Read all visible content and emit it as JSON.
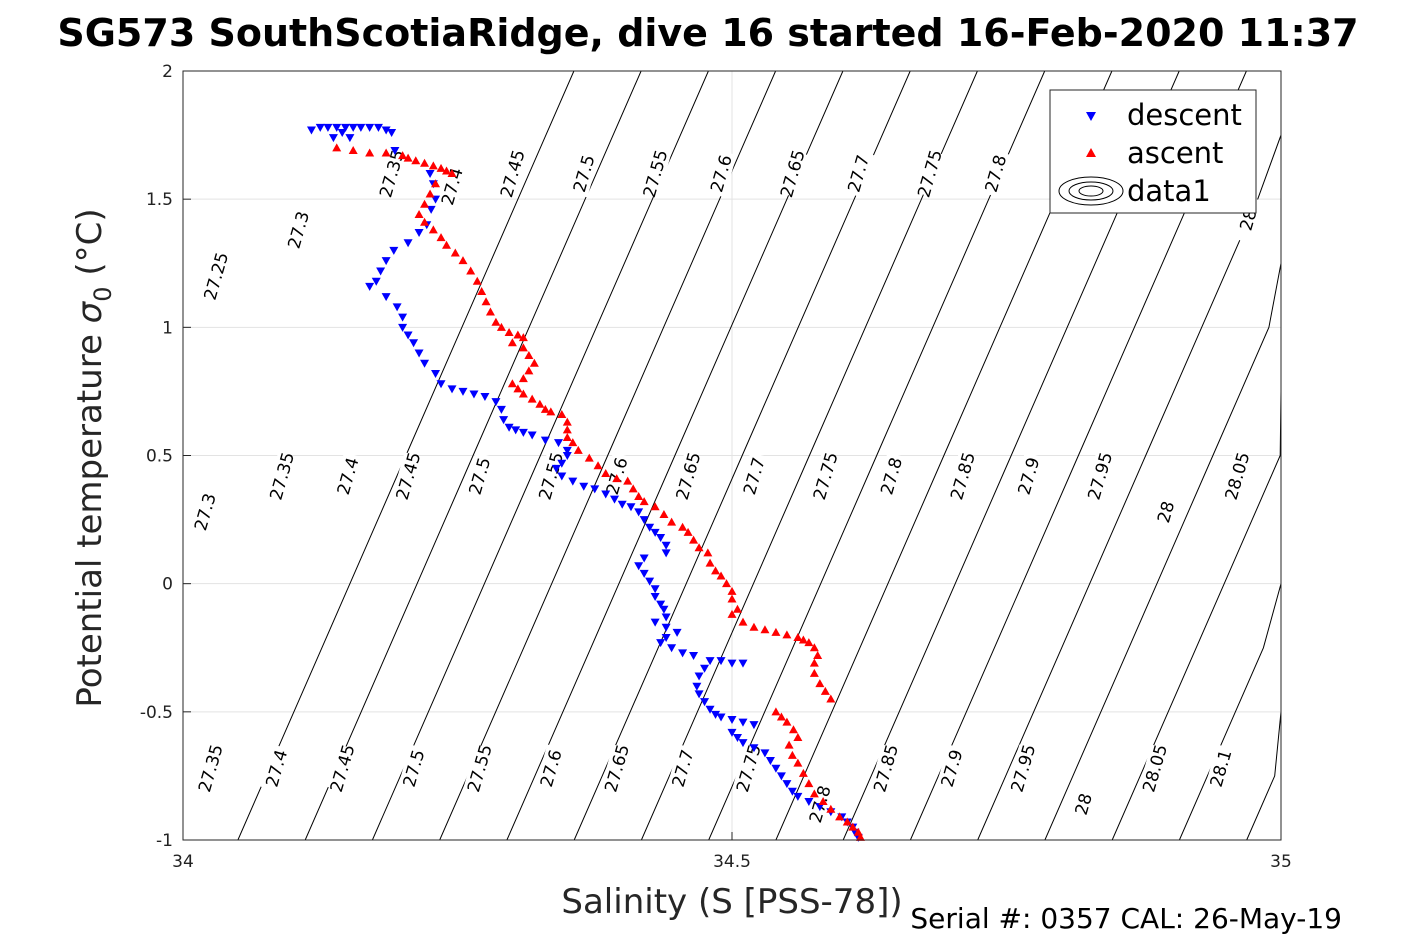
{
  "chart_data": {
    "type": "scatter",
    "title": "SG573 SouthScotiaRidge, dive 16 started 16-Feb-2020 11:37",
    "xlabel": "Salinity (S [PSS-78])",
    "ylabel": "Potential temperature σ₀ (°C)",
    "ylabel_main": "Potential temperature ",
    "ylabel_sym": "σ",
    "ylabel_sub": "0",
    "ylabel_unit": " (°C)",
    "xlim": [
      34,
      35
    ],
    "ylim": [
      -1,
      2
    ],
    "xticks": [
      "34",
      "34.5",
      "35"
    ],
    "yticks": [
      "-1",
      "-0.5",
      "0",
      "0.5",
      "1",
      "1.5",
      "2"
    ],
    "grid": true,
    "legend_placement": "top-right",
    "legend": [
      "descent",
      "ascent",
      "data1"
    ],
    "footer": "Serial #: 0357  CAL: 26-May-19",
    "density_contours": {
      "levels": [
        27.25,
        27.3,
        27.35,
        27.4,
        27.45,
        27.5,
        27.55,
        27.6,
        27.65,
        27.7,
        27.75,
        27.8,
        27.85,
        27.9,
        27.95,
        28,
        28.05,
        28.1
      ],
      "labels_top": [
        {
          "text": "27.25",
          "s": 34.03,
          "t": 1.2
        },
        {
          "text": "27.3",
          "s": 34.105,
          "t": 1.38
        },
        {
          "text": "27.35",
          "s": 34.19,
          "t": 1.6
        },
        {
          "text": "27.4",
          "s": 34.245,
          "t": 1.55
        },
        {
          "text": "27.45",
          "s": 34.3,
          "t": 1.6
        },
        {
          "text": "27.5",
          "s": 34.365,
          "t": 1.6
        },
        {
          "text": "27.55",
          "s": 34.43,
          "t": 1.6
        },
        {
          "text": "27.6",
          "s": 34.49,
          "t": 1.6
        },
        {
          "text": "27.65",
          "s": 34.555,
          "t": 1.6
        },
        {
          "text": "27.7",
          "s": 34.615,
          "t": 1.6
        },
        {
          "text": "27.75",
          "s": 34.68,
          "t": 1.6
        },
        {
          "text": "27.8",
          "s": 34.74,
          "t": 1.6
        },
        {
          "text": "28",
          "s": 34.97,
          "t": 1.42
        }
      ],
      "labels_mid": [
        {
          "text": "27.3",
          "s": 34.02,
          "t": 0.28
        },
        {
          "text": "27.35",
          "s": 34.09,
          "t": 0.42
        },
        {
          "text": "27.4",
          "s": 34.15,
          "t": 0.42
        },
        {
          "text": "27.45",
          "s": 34.205,
          "t": 0.42
        },
        {
          "text": "27.5",
          "s": 34.27,
          "t": 0.42
        },
        {
          "text": "27.55",
          "s": 34.335,
          "t": 0.42
        },
        {
          "text": "27.6",
          "s": 34.395,
          "t": 0.42
        },
        {
          "text": "27.65",
          "s": 34.46,
          "t": 0.42
        },
        {
          "text": "27.7",
          "s": 34.52,
          "t": 0.42
        },
        {
          "text": "27.75",
          "s": 34.585,
          "t": 0.42
        },
        {
          "text": "27.8",
          "s": 34.645,
          "t": 0.42
        },
        {
          "text": "27.85",
          "s": 34.71,
          "t": 0.42
        },
        {
          "text": "27.9",
          "s": 34.77,
          "t": 0.42
        },
        {
          "text": "27.95",
          "s": 34.835,
          "t": 0.42
        },
        {
          "text": "28",
          "s": 34.895,
          "t": 0.28
        },
        {
          "text": "28.05",
          "s": 34.96,
          "t": 0.42
        }
      ],
      "labels_bot": [
        {
          "text": "27.35",
          "s": 34.025,
          "t": -0.72
        },
        {
          "text": "27.4",
          "s": 34.085,
          "t": -0.72
        },
        {
          "text": "27.45",
          "s": 34.145,
          "t": -0.72
        },
        {
          "text": "27.5",
          "s": 34.21,
          "t": -0.72
        },
        {
          "text": "27.55",
          "s": 34.27,
          "t": -0.72
        },
        {
          "text": "27.6",
          "s": 34.335,
          "t": -0.72
        },
        {
          "text": "27.65",
          "s": 34.395,
          "t": -0.72
        },
        {
          "text": "27.7",
          "s": 34.455,
          "t": -0.72
        },
        {
          "text": "27.75",
          "s": 34.515,
          "t": -0.72
        },
        {
          "text": "27.8",
          "s": 34.58,
          "t": -0.86
        },
        {
          "text": "27.85",
          "s": 34.64,
          "t": -0.72
        },
        {
          "text": "27.9",
          "s": 34.7,
          "t": -0.72
        },
        {
          "text": "27.95",
          "s": 34.765,
          "t": -0.72
        },
        {
          "text": "28",
          "s": 34.82,
          "t": -0.86
        },
        {
          "text": "28.05",
          "s": 34.885,
          "t": -0.72
        },
        {
          "text": "28.1",
          "s": 34.945,
          "t": -0.72
        }
      ]
    },
    "series": [
      {
        "name": "descent",
        "color": "#0000ff",
        "marker": "triangle-down",
        "points": [
          [
            34.117,
            1.77
          ],
          [
            34.125,
            1.78
          ],
          [
            34.132,
            1.78
          ],
          [
            34.14,
            1.78
          ],
          [
            34.148,
            1.78
          ],
          [
            34.155,
            1.78
          ],
          [
            34.162,
            1.78
          ],
          [
            34.17,
            1.78
          ],
          [
            34.178,
            1.78
          ],
          [
            34.185,
            1.77
          ],
          [
            34.19,
            1.76
          ],
          [
            34.145,
            1.76
          ],
          [
            34.152,
            1.74
          ],
          [
            34.137,
            1.74
          ],
          [
            34.193,
            1.69
          ],
          [
            34.225,
            1.6
          ],
          [
            34.228,
            1.56
          ],
          [
            34.23,
            1.5
          ],
          [
            34.226,
            1.46
          ],
          [
            34.222,
            1.4
          ],
          [
            34.215,
            1.37
          ],
          [
            34.205,
            1.33
          ],
          [
            34.192,
            1.3
          ],
          [
            34.185,
            1.26
          ],
          [
            34.18,
            1.22
          ],
          [
            34.176,
            1.18
          ],
          [
            34.17,
            1.16
          ],
          [
            34.185,
            1.12
          ],
          [
            34.195,
            1.08
          ],
          [
            34.2,
            1.04
          ],
          [
            34.2,
            1.0
          ],
          [
            34.205,
            0.97
          ],
          [
            34.21,
            0.94
          ],
          [
            34.215,
            0.9
          ],
          [
            34.22,
            0.86
          ],
          [
            34.23,
            0.82
          ],
          [
            34.235,
            0.78
          ],
          [
            34.245,
            0.76
          ],
          [
            34.255,
            0.75
          ],
          [
            34.265,
            0.74
          ],
          [
            34.275,
            0.73
          ],
          [
            34.285,
            0.71
          ],
          [
            34.29,
            0.68
          ],
          [
            34.292,
            0.64
          ],
          [
            34.297,
            0.61
          ],
          [
            34.303,
            0.6
          ],
          [
            34.31,
            0.59
          ],
          [
            34.318,
            0.58
          ],
          [
            34.33,
            0.56
          ],
          [
            34.342,
            0.55
          ],
          [
            34.35,
            0.52
          ],
          [
            34.35,
            0.5
          ],
          [
            34.345,
            0.47
          ],
          [
            34.34,
            0.45
          ],
          [
            34.345,
            0.42
          ],
          [
            34.355,
            0.4
          ],
          [
            34.365,
            0.38
          ],
          [
            34.375,
            0.37
          ],
          [
            34.385,
            0.35
          ],
          [
            34.393,
            0.33
          ],
          [
            34.4,
            0.31
          ],
          [
            34.408,
            0.3
          ],
          [
            34.415,
            0.28
          ],
          [
            34.42,
            0.25
          ],
          [
            34.425,
            0.22
          ],
          [
            34.43,
            0.2
          ],
          [
            34.435,
            0.18
          ],
          [
            34.44,
            0.15
          ],
          [
            34.44,
            0.12
          ],
          [
            34.42,
            0.1
          ],
          [
            34.415,
            0.07
          ],
          [
            34.42,
            0.04
          ],
          [
            34.425,
            0.01
          ],
          [
            34.43,
            -0.02
          ],
          [
            34.43,
            -0.05
          ],
          [
            34.435,
            -0.08
          ],
          [
            34.438,
            -0.1
          ],
          [
            34.44,
            -0.13
          ],
          [
            34.43,
            -0.15
          ],
          [
            34.44,
            -0.17
          ],
          [
            34.45,
            -0.19
          ],
          [
            34.44,
            -0.21
          ],
          [
            34.435,
            -0.23
          ],
          [
            34.445,
            -0.25
          ],
          [
            34.455,
            -0.27
          ],
          [
            34.465,
            -0.28
          ],
          [
            34.48,
            -0.3
          ],
          [
            34.49,
            -0.3
          ],
          [
            34.5,
            -0.31
          ],
          [
            34.51,
            -0.31
          ],
          [
            34.475,
            -0.33
          ],
          [
            34.47,
            -0.36
          ],
          [
            34.468,
            -0.4
          ],
          [
            34.47,
            -0.43
          ],
          [
            34.475,
            -0.46
          ],
          [
            34.48,
            -0.49
          ],
          [
            34.485,
            -0.51
          ],
          [
            34.49,
            -0.52
          ],
          [
            34.5,
            -0.53
          ],
          [
            34.51,
            -0.54
          ],
          [
            34.52,
            -0.55
          ],
          [
            34.5,
            -0.58
          ],
          [
            34.505,
            -0.6
          ],
          [
            34.51,
            -0.62
          ],
          [
            34.52,
            -0.64
          ],
          [
            34.53,
            -0.66
          ],
          [
            34.535,
            -0.69
          ],
          [
            34.54,
            -0.72
          ],
          [
            34.545,
            -0.75
          ],
          [
            34.55,
            -0.78
          ],
          [
            34.555,
            -0.81
          ],
          [
            34.56,
            -0.83
          ],
          [
            34.57,
            -0.85
          ],
          [
            34.58,
            -0.87
          ],
          [
            34.59,
            -0.89
          ],
          [
            34.6,
            -0.91
          ],
          [
            34.605,
            -0.93
          ],
          [
            34.61,
            -0.95
          ],
          [
            34.612,
            -0.97
          ],
          [
            34.615,
            -0.99
          ]
        ]
      },
      {
        "name": "ascent",
        "color": "#ff0000",
        "marker": "triangle-up",
        "points": [
          [
            34.14,
            1.7
          ],
          [
            34.155,
            1.69
          ],
          [
            34.17,
            1.68
          ],
          [
            34.185,
            1.68
          ],
          [
            34.2,
            1.67
          ],
          [
            34.205,
            1.66
          ],
          [
            34.212,
            1.65
          ],
          [
            34.22,
            1.64
          ],
          [
            34.228,
            1.63
          ],
          [
            34.235,
            1.62
          ],
          [
            34.24,
            1.61
          ],
          [
            34.245,
            1.6
          ],
          [
            34.23,
            1.56
          ],
          [
            34.225,
            1.52
          ],
          [
            34.22,
            1.48
          ],
          [
            34.215,
            1.44
          ],
          [
            34.22,
            1.41
          ],
          [
            34.228,
            1.38
          ],
          [
            34.235,
            1.35
          ],
          [
            34.24,
            1.32
          ],
          [
            34.248,
            1.29
          ],
          [
            34.255,
            1.26
          ],
          [
            34.262,
            1.22
          ],
          [
            34.268,
            1.18
          ],
          [
            34.272,
            1.14
          ],
          [
            34.276,
            1.1
          ],
          [
            34.28,
            1.06
          ],
          [
            34.285,
            1.02
          ],
          [
            34.29,
            1.0
          ],
          [
            34.297,
            0.98
          ],
          [
            34.305,
            0.97
          ],
          [
            34.31,
            0.96
          ],
          [
            34.3,
            0.94
          ],
          [
            34.31,
            0.92
          ],
          [
            34.315,
            0.89
          ],
          [
            34.32,
            0.86
          ],
          [
            34.315,
            0.83
          ],
          [
            34.31,
            0.8
          ],
          [
            34.3,
            0.78
          ],
          [
            34.305,
            0.76
          ],
          [
            34.31,
            0.74
          ],
          [
            34.318,
            0.72
          ],
          [
            34.325,
            0.7
          ],
          [
            34.33,
            0.68
          ],
          [
            34.335,
            0.67
          ],
          [
            34.345,
            0.66
          ],
          [
            34.35,
            0.63
          ],
          [
            34.35,
            0.6
          ],
          [
            34.35,
            0.57
          ],
          [
            34.355,
            0.55
          ],
          [
            34.36,
            0.52
          ],
          [
            34.37,
            0.49
          ],
          [
            34.378,
            0.46
          ],
          [
            34.385,
            0.43
          ],
          [
            34.395,
            0.41
          ],
          [
            34.405,
            0.4
          ],
          [
            34.41,
            0.37
          ],
          [
            34.415,
            0.34
          ],
          [
            34.42,
            0.32
          ],
          [
            34.43,
            0.3
          ],
          [
            34.438,
            0.27
          ],
          [
            34.445,
            0.24
          ],
          [
            34.455,
            0.22
          ],
          [
            34.46,
            0.2
          ],
          [
            34.465,
            0.17
          ],
          [
            34.47,
            0.14
          ],
          [
            34.478,
            0.12
          ],
          [
            34.48,
            0.08
          ],
          [
            34.485,
            0.05
          ],
          [
            34.49,
            0.03
          ],
          [
            34.495,
            0.0
          ],
          [
            34.5,
            -0.03
          ],
          [
            34.5,
            -0.06
          ],
          [
            34.505,
            -0.1
          ],
          [
            34.5,
            -0.12
          ],
          [
            34.51,
            -0.15
          ],
          [
            34.52,
            -0.17
          ],
          [
            34.53,
            -0.18
          ],
          [
            34.54,
            -0.19
          ],
          [
            34.55,
            -0.2
          ],
          [
            34.56,
            -0.21
          ],
          [
            34.565,
            -0.22
          ],
          [
            34.57,
            -0.23
          ],
          [
            34.575,
            -0.25
          ],
          [
            34.578,
            -0.28
          ],
          [
            34.575,
            -0.31
          ],
          [
            34.575,
            -0.35
          ],
          [
            34.58,
            -0.39
          ],
          [
            34.585,
            -0.42
          ],
          [
            34.59,
            -0.45
          ],
          [
            34.54,
            -0.5
          ],
          [
            34.545,
            -0.52
          ],
          [
            34.55,
            -0.54
          ],
          [
            34.556,
            -0.57
          ],
          [
            34.56,
            -0.6
          ],
          [
            34.552,
            -0.63
          ],
          [
            34.555,
            -0.67
          ],
          [
            34.56,
            -0.7
          ],
          [
            34.565,
            -0.74
          ],
          [
            34.57,
            -0.78
          ],
          [
            34.575,
            -0.82
          ],
          [
            34.583,
            -0.85
          ],
          [
            34.59,
            -0.88
          ],
          [
            34.598,
            -0.91
          ],
          [
            34.605,
            -0.93
          ],
          [
            34.61,
            -0.95
          ],
          [
            34.615,
            -0.97
          ],
          [
            34.617,
            -0.99
          ]
        ]
      }
    ]
  }
}
